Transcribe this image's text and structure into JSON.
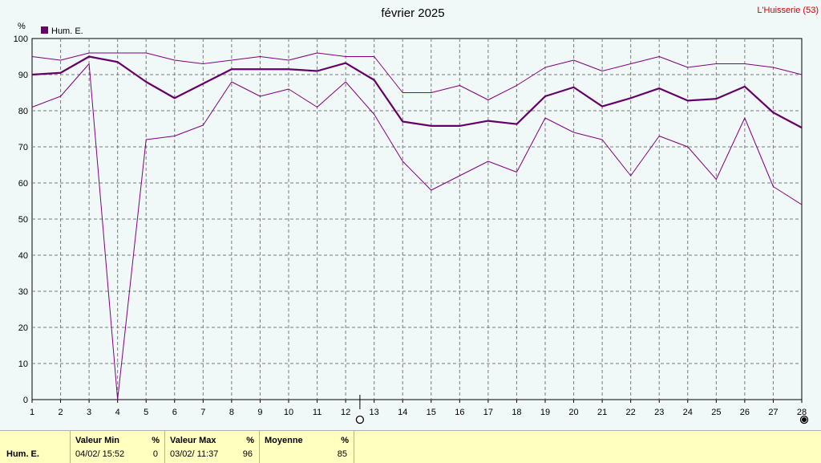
{
  "title": "février 2025",
  "station": "L'Huisserie (53)",
  "unit_label": "%",
  "legend": {
    "label": "Hum. E.",
    "color": "#660066"
  },
  "chart_data": {
    "type": "line",
    "title": "février 2025",
    "ylabel": "%",
    "xlabel": "",
    "ylim": [
      0,
      100
    ],
    "y_ticks": [
      0,
      10,
      20,
      30,
      40,
      50,
      60,
      70,
      80,
      90,
      100
    ],
    "x": [
      1,
      2,
      3,
      4,
      5,
      6,
      7,
      8,
      9,
      10,
      11,
      12,
      13,
      14,
      15,
      16,
      17,
      18,
      19,
      20,
      21,
      22,
      23,
      24,
      25,
      26,
      27,
      28
    ],
    "grid": true,
    "legend_position": "top-left",
    "series": [
      {
        "name": "Hum. E.",
        "role": "max",
        "color": "#800080",
        "values": [
          95,
          94,
          96,
          96,
          96,
          94,
          93,
          94,
          95,
          94,
          96,
          95,
          95,
          85,
          85,
          87,
          83,
          87,
          92,
          94,
          91,
          93,
          95,
          92,
          93,
          93,
          92,
          90
        ]
      },
      {
        "role": "mean",
        "color": "#660066",
        "values": [
          90,
          90.5,
          95,
          93.5,
          88,
          83.5,
          87.5,
          91.5,
          91.5,
          91.5,
          91,
          93.2,
          88.5,
          77,
          75.8,
          75.8,
          77.2,
          76.3,
          84,
          86.5,
          81.2,
          83.5,
          86.2,
          82.8,
          83.3,
          86.7,
          79.5,
          75.3
        ]
      },
      {
        "role": "min",
        "color": "#800080",
        "values": [
          81,
          84,
          93,
          0,
          72,
          73,
          76,
          88,
          84,
          86,
          81,
          88,
          79,
          66,
          58,
          62,
          66,
          63,
          78,
          74,
          72,
          62,
          73,
          70,
          61,
          78,
          59,
          54
        ]
      }
    ],
    "markers": [
      {
        "x": 12.5,
        "type": "open-circle"
      },
      {
        "x": 28,
        "type": "filled-circle"
      }
    ]
  },
  "footer": {
    "row_label": "Hum. E.",
    "min": {
      "header": "Valeur Min",
      "unit": "%",
      "date": "04/02/  15:52",
      "value": "0"
    },
    "max": {
      "header": "Valeur Max",
      "unit": "%",
      "date": "03/02/  11:37",
      "value": "96"
    },
    "avg": {
      "header": "Moyenne",
      "unit": "%",
      "value": "85"
    }
  }
}
